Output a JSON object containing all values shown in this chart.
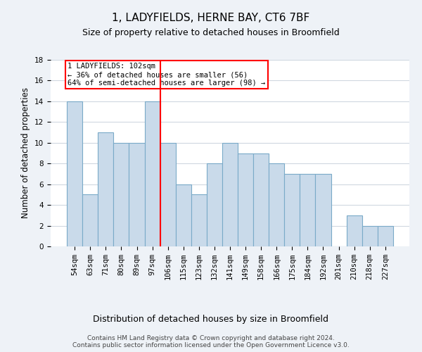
{
  "title": "1, LADYFIELDS, HERNE BAY, CT6 7BF",
  "subtitle": "Size of property relative to detached houses in Broomfield",
  "xlabel": "Distribution of detached houses by size in Broomfield",
  "ylabel": "Number of detached properties",
  "footer_line1": "Contains HM Land Registry data © Crown copyright and database right 2024.",
  "footer_line2": "Contains public sector information licensed under the Open Government Licence v3.0.",
  "categories": [
    "54sqm",
    "63sqm",
    "71sqm",
    "80sqm",
    "89sqm",
    "97sqm",
    "106sqm",
    "115sqm",
    "123sqm",
    "132sqm",
    "141sqm",
    "149sqm",
    "158sqm",
    "166sqm",
    "175sqm",
    "184sqm",
    "192sqm",
    "201sqm",
    "210sqm",
    "218sqm",
    "227sqm"
  ],
  "values": [
    14,
    5,
    11,
    10,
    10,
    14,
    10,
    6,
    5,
    8,
    10,
    9,
    9,
    8,
    7,
    7,
    7,
    0,
    3,
    2,
    2
  ],
  "bar_color": "#c9daea",
  "bar_edge_color": "#7aaac8",
  "grid_color": "#d0d8e0",
  "vline_x": 5.5,
  "vline_color": "red",
  "annotation_line1": "1 LADYFIELDS: 102sqm",
  "annotation_line2": "← 36% of detached houses are smaller (56)",
  "annotation_line3": "64% of semi-detached houses are larger (98) →",
  "annotation_box_color": "red",
  "ylim": [
    0,
    18
  ],
  "yticks": [
    0,
    2,
    4,
    6,
    8,
    10,
    12,
    14,
    16,
    18
  ],
  "bg_color": "#eef2f7",
  "plot_bg_color": "#ffffff",
  "title_fontsize": 11,
  "subtitle_fontsize": 9,
  "ylabel_fontsize": 8.5,
  "xlabel_fontsize": 9,
  "tick_fontsize": 7.5,
  "footer_fontsize": 6.5,
  "annot_fontsize": 7.5
}
